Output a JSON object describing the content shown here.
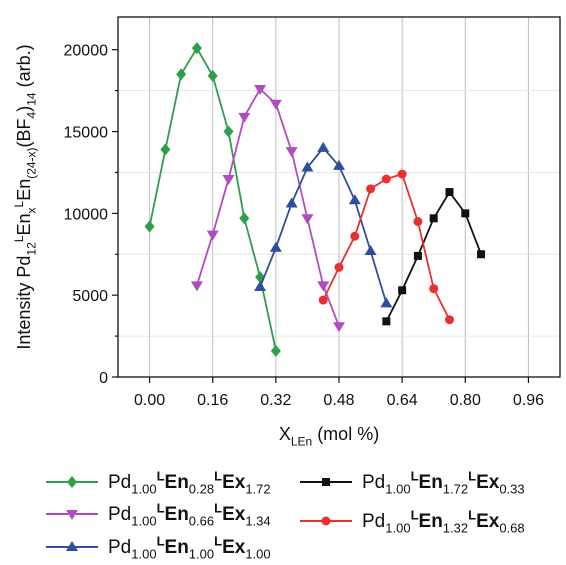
{
  "chart_data": {
    "type": "line",
    "title": "",
    "xlabel": {
      "main": "X",
      "sub": "LEn",
      "rest": " (mol %)"
    },
    "ylabel": {
      "parts": [
        {
          "t": "Intensity Pd",
          "s": "n"
        },
        {
          "t": "12",
          "s": "sub"
        },
        {
          "t": "L",
          "s": "sup"
        },
        {
          "t": "En",
          "s": "n"
        },
        {
          "t": "x",
          "s": "sub"
        },
        {
          "t": "L",
          "s": "sup"
        },
        {
          "t": "En",
          "s": "n"
        },
        {
          "t": "(24-x)",
          "s": "sub"
        },
        {
          "t": "(BF",
          "s": "n"
        },
        {
          "t": "4",
          "s": "sub"
        },
        {
          "t": ")",
          "s": "n"
        },
        {
          "t": "14",
          "s": "sub"
        },
        {
          "t": "  (arb.)",
          "s": "n"
        }
      ]
    },
    "xlim": [
      -0.08,
      1.04
    ],
    "ylim": [
      0,
      22000
    ],
    "xticks": [
      0.0,
      0.16,
      0.32,
      0.48,
      0.64,
      0.8,
      0.96
    ],
    "xtick_labels": [
      "0.00",
      "0.16",
      "0.32",
      "0.48",
      "0.64",
      "0.80",
      "0.96"
    ],
    "yticks": [
      0,
      5000,
      10000,
      15000,
      20000
    ],
    "ytick_labels": [
      "0",
      "5000",
      "10000",
      "15000",
      "20000"
    ],
    "grid": {
      "vertical": true,
      "horizontal_minor": true
    },
    "legend_position": "bottom",
    "series": [
      {
        "key": "s028",
        "label": [
          {
            "t": "Pd",
            "s": "n"
          },
          {
            "t": "1.00",
            "s": "sub"
          },
          {
            "t": "L",
            "s": "supb"
          },
          {
            "t": "En",
            "s": "b"
          },
          {
            "t": "0.28",
            "s": "sub"
          },
          {
            "t": "L",
            "s": "supb"
          },
          {
            "t": "Ex",
            "s": "b"
          },
          {
            "t": "1.72",
            "s": "sub"
          }
        ],
        "color": "#2e9e4a",
        "marker": "diamond",
        "x": [
          0.0,
          0.04,
          0.08,
          0.12,
          0.16,
          0.2,
          0.24,
          0.28,
          0.32
        ],
        "y": [
          9200,
          13900,
          18500,
          20100,
          18400,
          15000,
          9700,
          6100,
          1600
        ]
      },
      {
        "key": "s066",
        "label": [
          {
            "t": "Pd",
            "s": "n"
          },
          {
            "t": "1.00",
            "s": "sub"
          },
          {
            "t": "L",
            "s": "supb"
          },
          {
            "t": "En",
            "s": "b"
          },
          {
            "t": "0.66",
            "s": "sub"
          },
          {
            "t": "L",
            "s": "supb"
          },
          {
            "t": "Ex",
            "s": "b"
          },
          {
            "t": "1.34",
            "s": "sub"
          }
        ],
        "color": "#b04cc0",
        "marker": "triangle-down",
        "x": [
          0.12,
          0.16,
          0.2,
          0.24,
          0.28,
          0.32,
          0.36,
          0.4,
          0.44,
          0.48
        ],
        "y": [
          5600,
          8700,
          12100,
          15900,
          17600,
          16700,
          13800,
          9700,
          5600,
          3100
        ]
      },
      {
        "key": "s100",
        "label": [
          {
            "t": "Pd",
            "s": "n"
          },
          {
            "t": "1.00",
            "s": "sub"
          },
          {
            "t": "L",
            "s": "supb"
          },
          {
            "t": "En",
            "s": "b"
          },
          {
            "t": "1.00",
            "s": "sub"
          },
          {
            "t": "L",
            "s": "supb"
          },
          {
            "t": "Ex",
            "s": "b"
          },
          {
            "t": "1.00",
            "s": "sub"
          }
        ],
        "color": "#2f4f9e",
        "marker": "triangle-up",
        "x": [
          0.28,
          0.32,
          0.36,
          0.4,
          0.44,
          0.48,
          0.52,
          0.56,
          0.6
        ],
        "y": [
          5500,
          7900,
          10600,
          12800,
          14000,
          12900,
          10800,
          7700,
          4500
        ]
      },
      {
        "key": "s172",
        "label": [
          {
            "t": "Pd",
            "s": "n"
          },
          {
            "t": "1.00",
            "s": "sub"
          },
          {
            "t": "L",
            "s": "supb"
          },
          {
            "t": "En",
            "s": "b"
          },
          {
            "t": "1.72",
            "s": "sub"
          },
          {
            "t": "L",
            "s": "supb"
          },
          {
            "t": "Ex",
            "s": "b"
          },
          {
            "t": "0.33",
            "s": "sub"
          }
        ],
        "color": "#111111",
        "marker": "square",
        "x": [
          0.6,
          0.64,
          0.68,
          0.72,
          0.76,
          0.8,
          0.84
        ],
        "y": [
          3400,
          5300,
          7400,
          9700,
          11300,
          10000,
          7500
        ]
      },
      {
        "key": "s132",
        "label": [
          {
            "t": "Pd",
            "s": "n"
          },
          {
            "t": "1.00",
            "s": "sub"
          },
          {
            "t": "L",
            "s": "supb"
          },
          {
            "t": "En",
            "s": "b"
          },
          {
            "t": "1.32",
            "s": "sub"
          },
          {
            "t": "L",
            "s": "supb"
          },
          {
            "t": "Ex",
            "s": "b"
          },
          {
            "t": "0.68",
            "s": "sub"
          }
        ],
        "color": "#e8312f",
        "marker": "circle",
        "x": [
          0.44,
          0.48,
          0.52,
          0.56,
          0.6,
          0.64,
          0.68,
          0.72,
          0.76
        ],
        "y": [
          4700,
          6700,
          8600,
          11500,
          12100,
          12400,
          9500,
          5400,
          3500
        ]
      }
    ]
  }
}
